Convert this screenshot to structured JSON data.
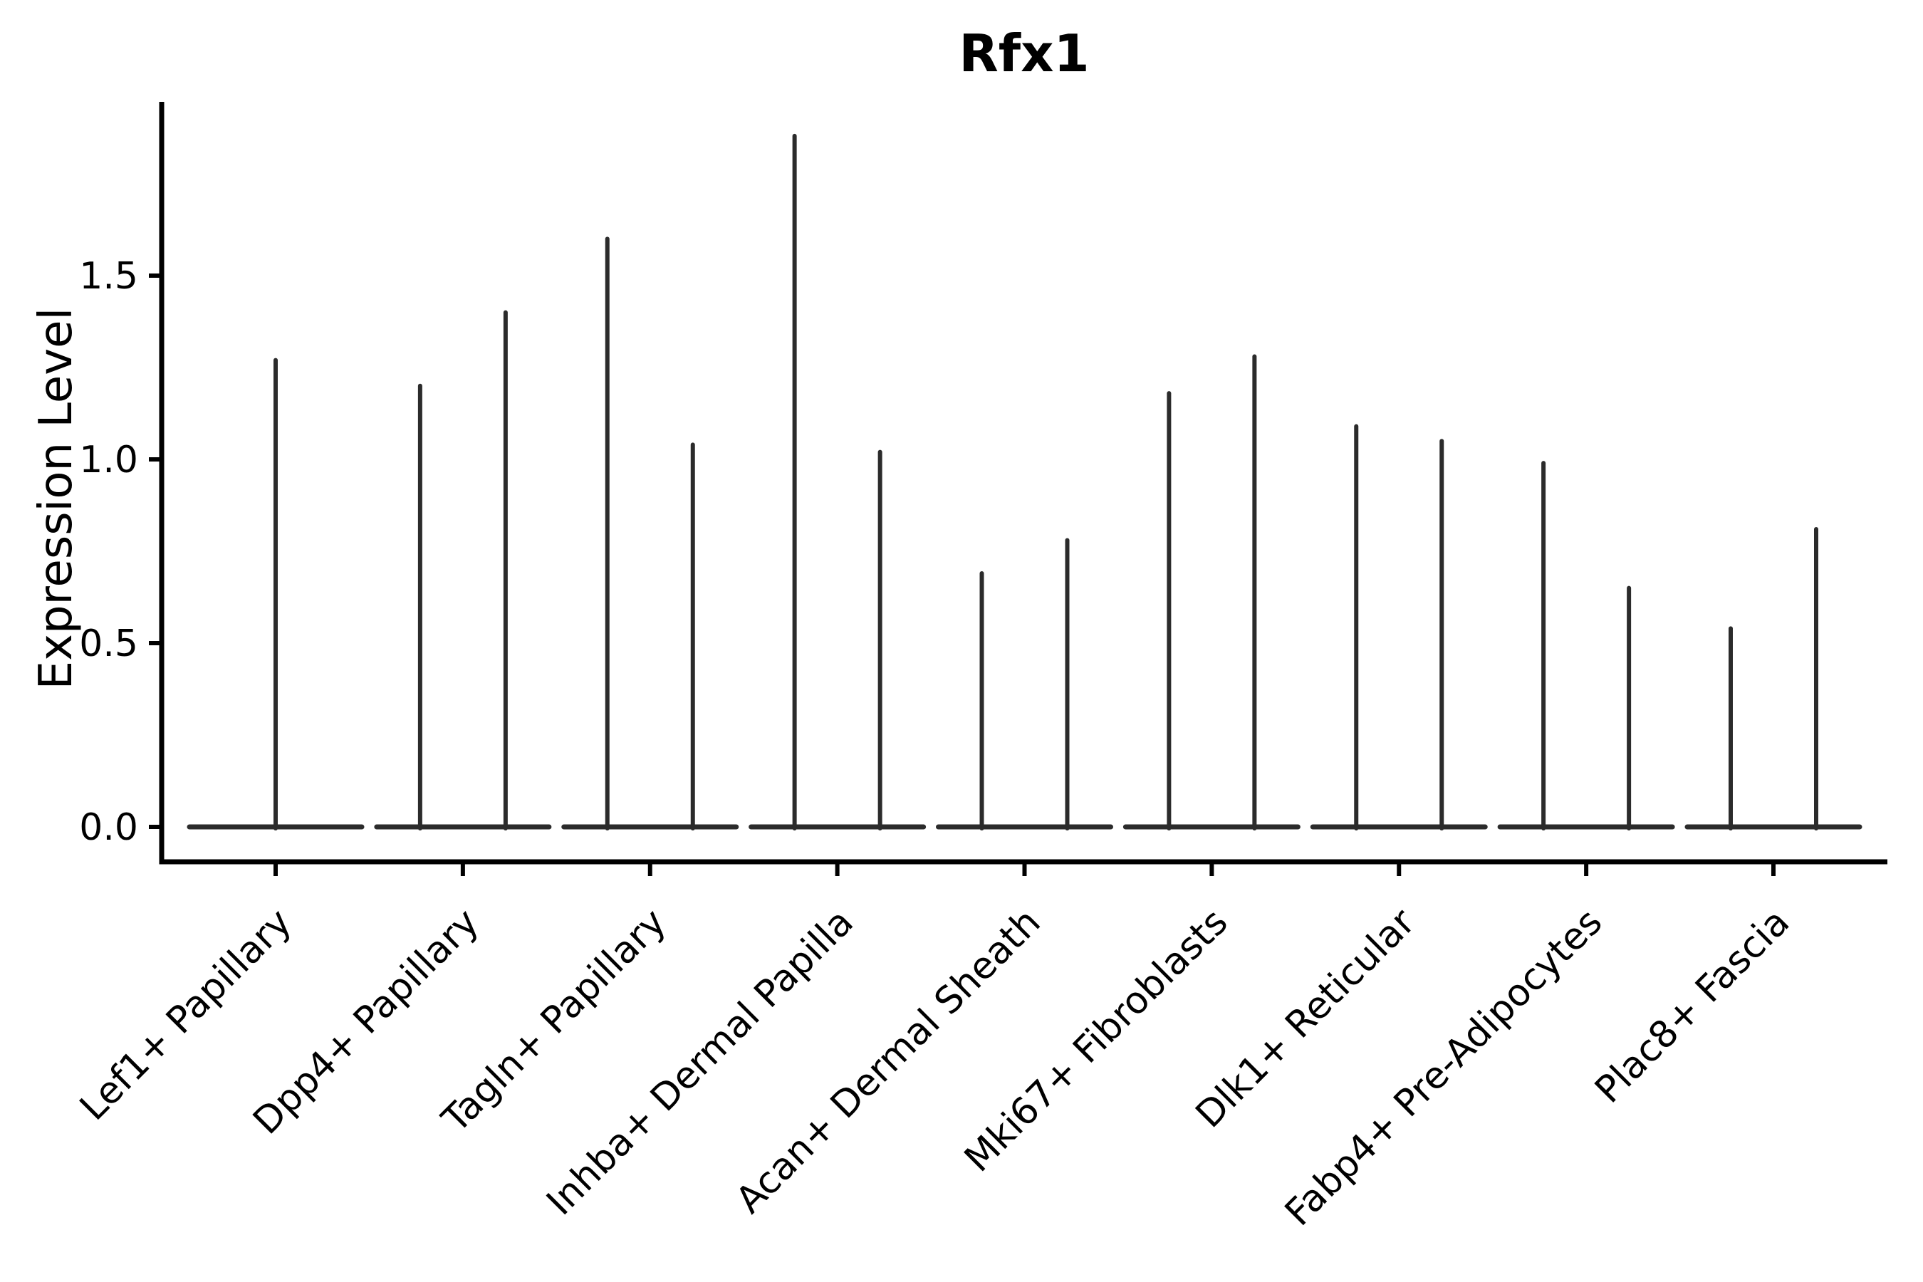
{
  "figure": {
    "background": "#ffffff"
  },
  "chart_data": {
    "type": "violin",
    "title": "Rfx1",
    "ylabel": "Expression Level",
    "xlabel": "",
    "categories": [
      "Lef1+ Papillary",
      "Dpp4+ Papillary",
      "Tagln+ Papillary",
      "Inhba+ Dermal Papilla",
      "Acan+ Dermal Sheath",
      "Mki67+ Fibroblasts",
      "Dlk1+ Reticular",
      "Fabp4+ Pre-Adipocytes",
      "Plac8+ Fascia"
    ],
    "max_expression": [
      [
        1.27
      ],
      [
        1.2,
        1.4
      ],
      [
        1.6,
        1.04
      ],
      [
        1.88,
        1.02
      ],
      [
        0.69,
        0.78
      ],
      [
        1.18,
        1.28
      ],
      [
        1.09,
        1.05
      ],
      [
        0.99,
        0.65
      ],
      [
        0.54,
        0.81
      ]
    ],
    "yticks": [
      0.0,
      0.5,
      1.0,
      1.5
    ],
    "ylim": [
      -0.09,
      1.97
    ],
    "grid": false,
    "legend": "none",
    "notes": "Sparse single-cell expression violins: wide flat base at 0 with thin spikes up to the max expression per violin; first category has a single centered violin, all others have two side-by-side violins",
    "colors": {
      "violin": "#2b2b2b",
      "axis": "#000000",
      "text": "#000000",
      "background": "#ffffff"
    }
  }
}
